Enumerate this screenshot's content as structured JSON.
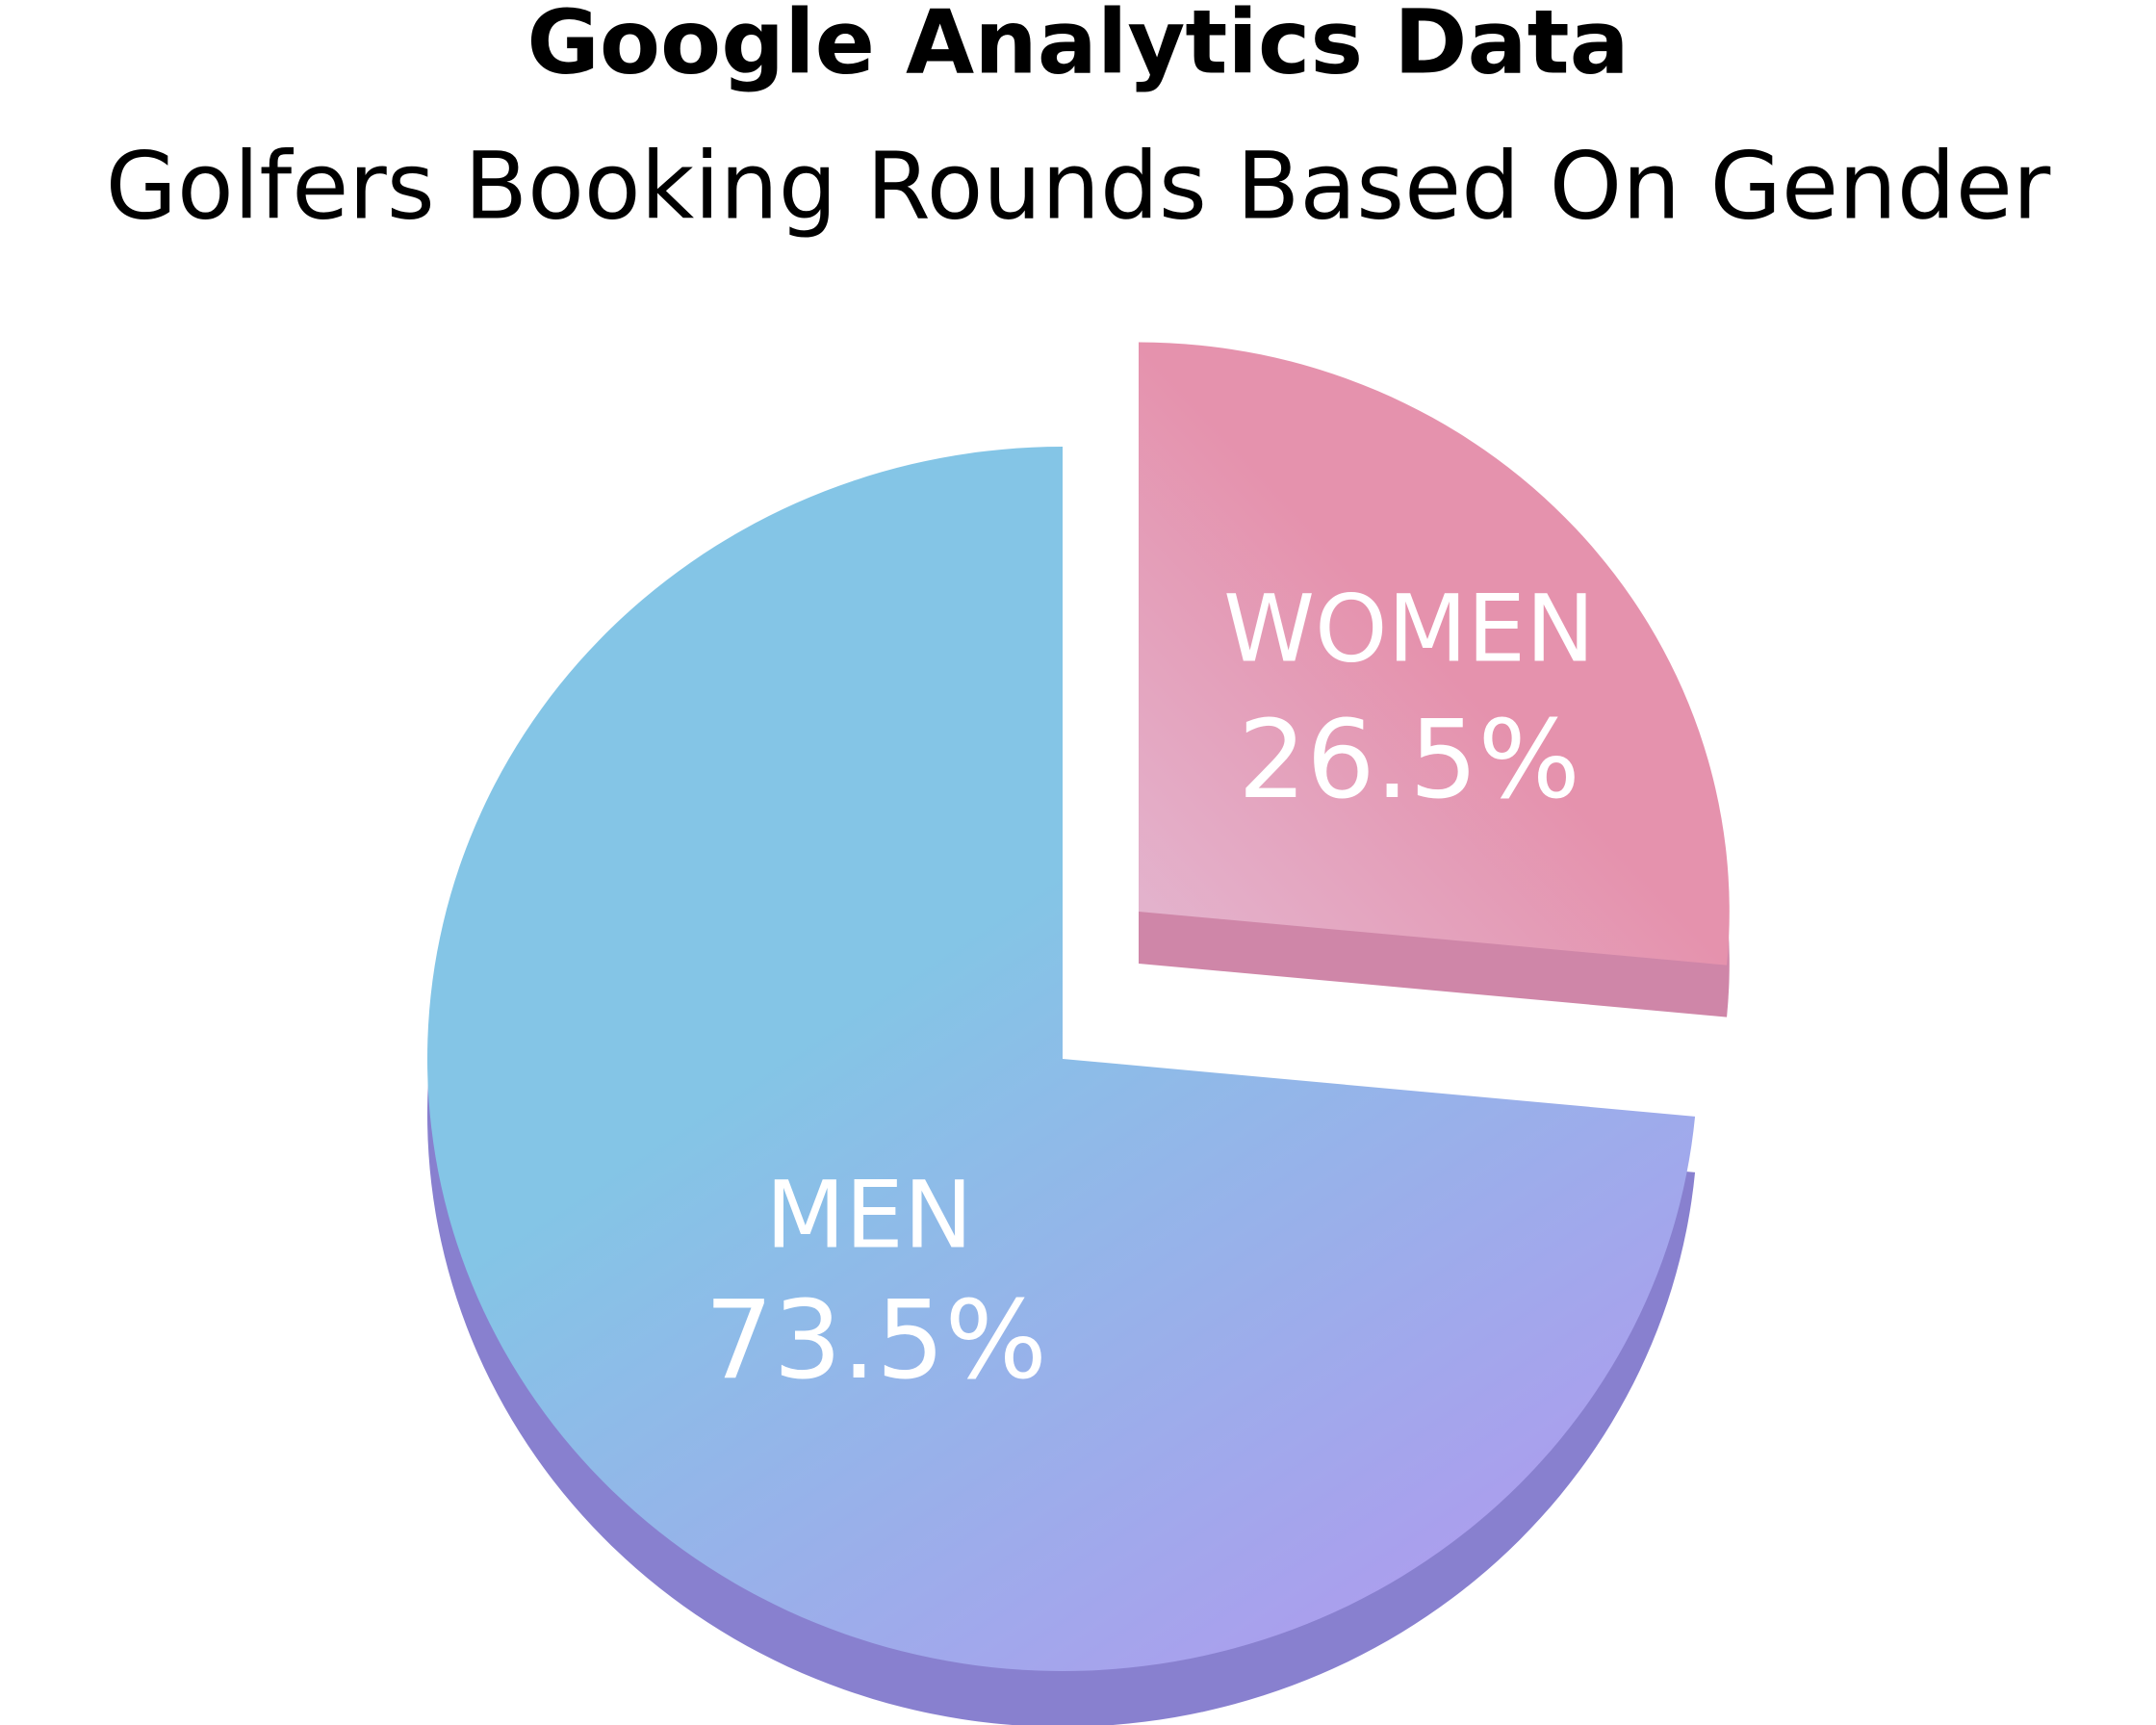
{
  "chart_data": {
    "type": "pie",
    "title": "Google Analytics Data",
    "subtitle": "Golfers Booking Rounds Based On Gender",
    "categories": [
      "WOMEN",
      "MEN"
    ],
    "values": [
      26.5,
      73.5
    ],
    "value_labels": [
      "26.5%",
      "73.5%"
    ],
    "colors": [
      "#e592ad",
      "#84c5e6"
    ]
  }
}
